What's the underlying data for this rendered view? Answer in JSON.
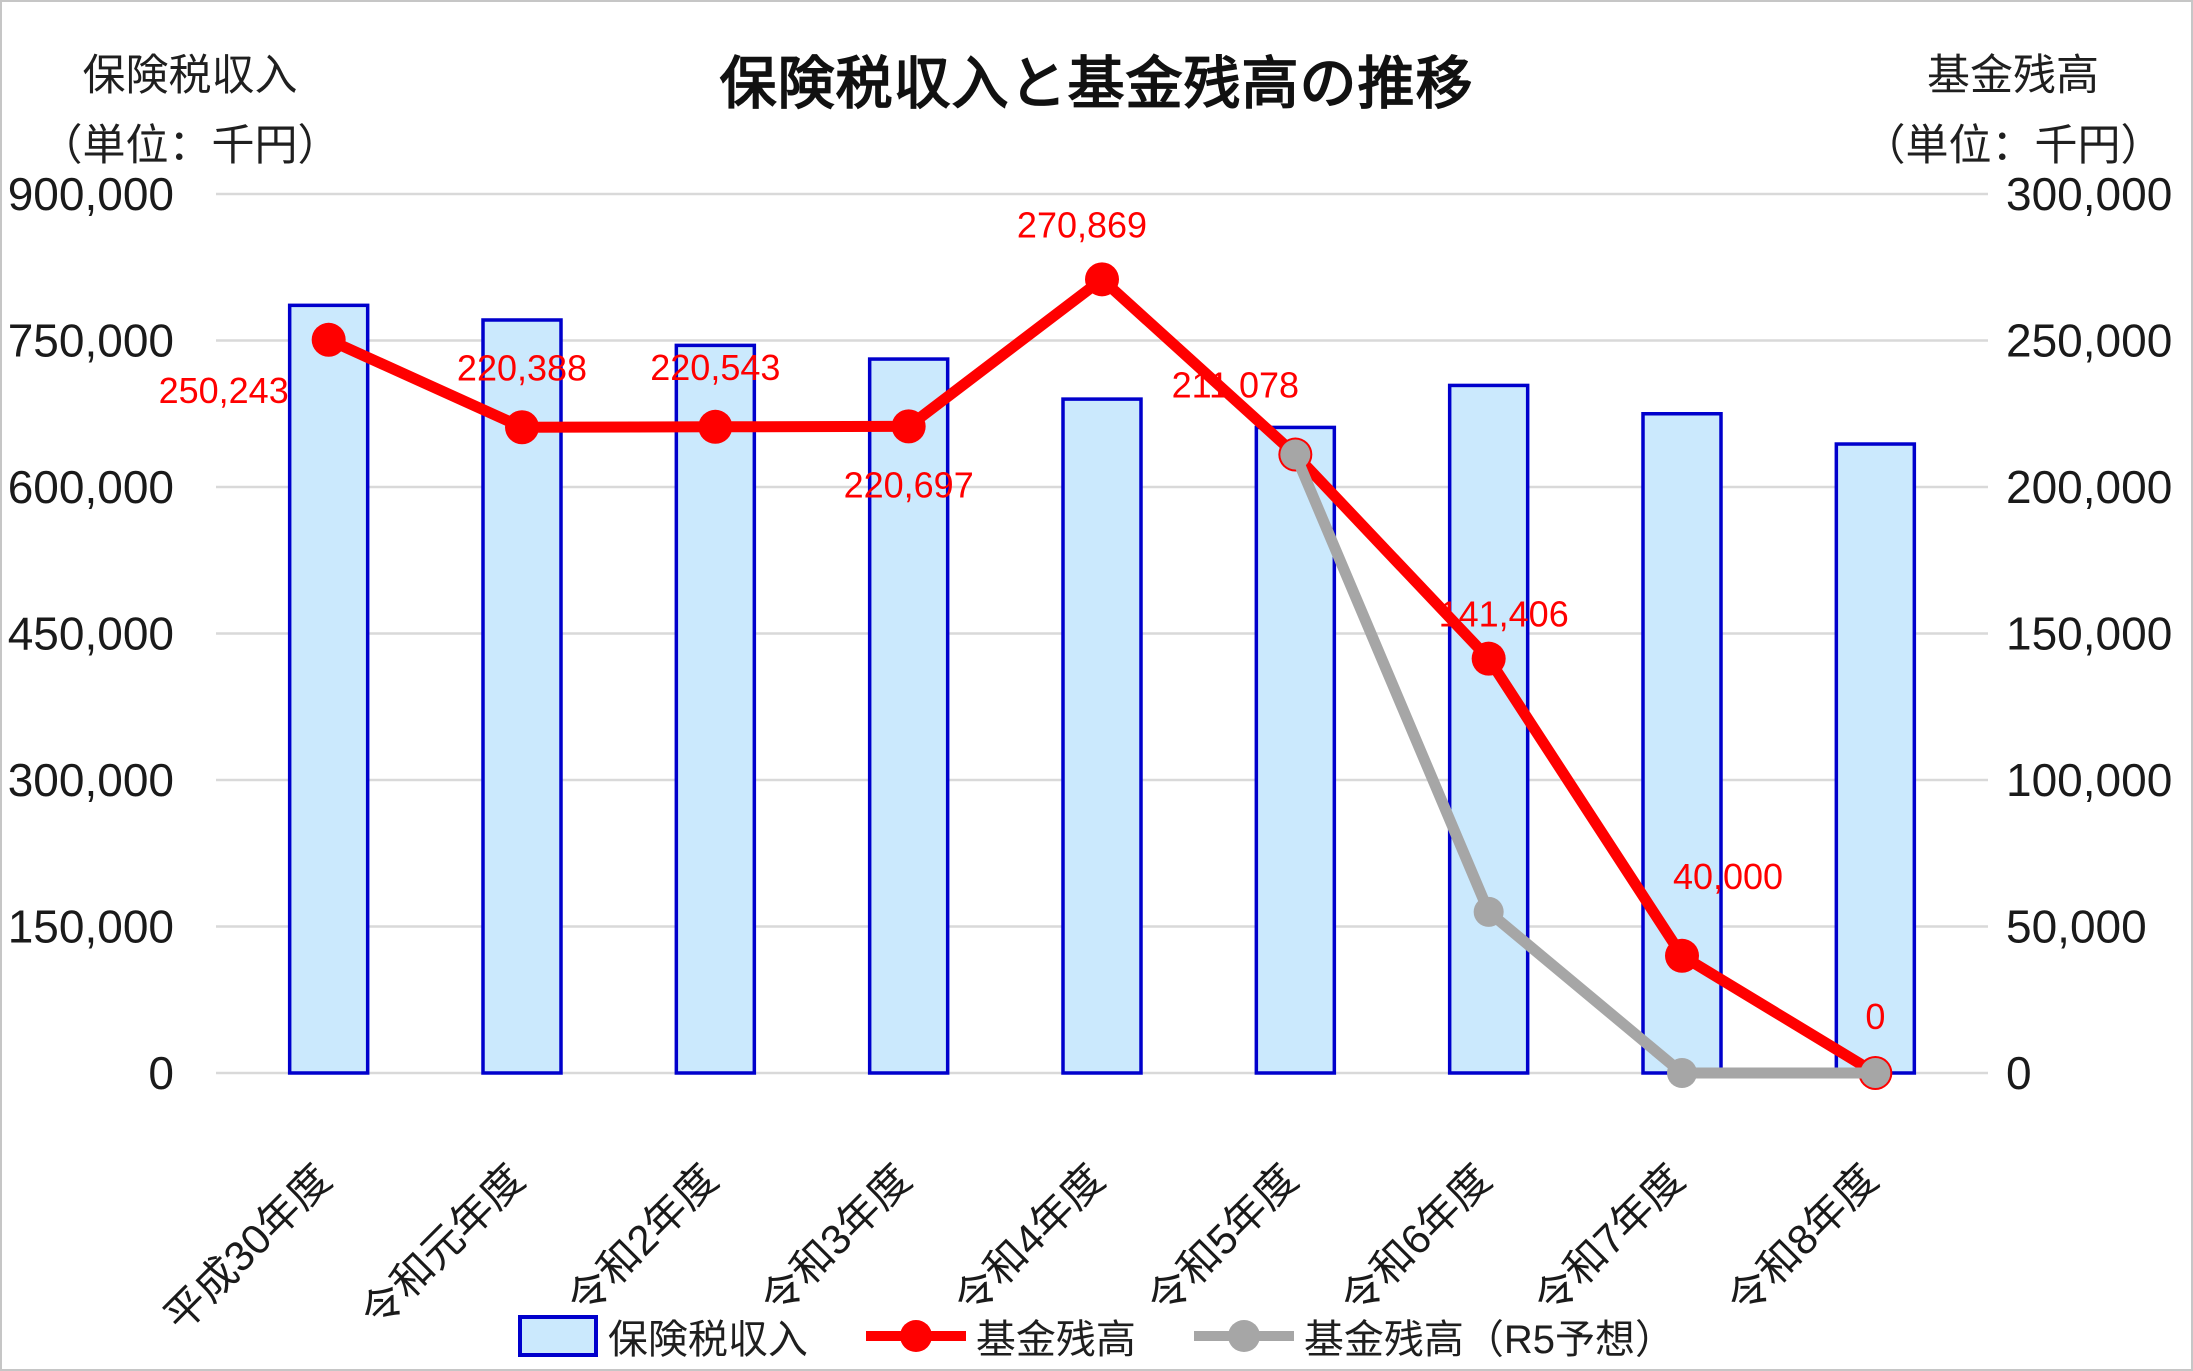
{
  "title": "保険税収入と基金残高の推移",
  "axis_headers": {
    "left_line1": "保険税収入",
    "left_line2": "（単位：千円）",
    "right_line1": "基金残高",
    "right_line2": "（単位：千円）"
  },
  "legend": {
    "items": [
      {
        "label": "保険税収入",
        "swatch": "bar",
        "fill": "#CBE9FD",
        "border": "#0000CC"
      },
      {
        "label": "基金残高",
        "swatch": "line",
        "color": "#FF0000"
      },
      {
        "label": "基金残高（R5予想）",
        "swatch": "line",
        "color": "#A6A6A6"
      }
    ]
  },
  "colors": {
    "grid": "#D9D9D9",
    "axis_text": "#1a1a1a",
    "data_label": "#FF0000",
    "frame_border": "#c6c6c6",
    "background": "#ffffff"
  },
  "chart_data": {
    "type": "combo-bar-line",
    "grid": true,
    "legend_position": "bottom",
    "categories": [
      "平成30年度",
      "令和元年度",
      "令和2年度",
      "令和3年度",
      "令和4年度",
      "令和5年度",
      "令和6年度",
      "令和7年度",
      "令和8年度"
    ],
    "left_axis": {
      "title": "保険税収入（単位：千円）",
      "min": 0,
      "max": 900000,
      "step": 150000,
      "tick_labels": [
        "0",
        "150,000",
        "300,000",
        "450,000",
        "600,000",
        "750,000",
        "900,000"
      ]
    },
    "right_axis": {
      "title": "基金残高（単位：千円）",
      "min": 0,
      "max": 300000,
      "step": 50000,
      "tick_labels": [
        "0",
        "50,000",
        "100,000",
        "150,000",
        "200,000",
        "250,000",
        "300,000"
      ]
    },
    "series": [
      {
        "name": "保険税収入",
        "chart_type": "bar",
        "axis": "left",
        "fill": "#CBE9FD",
        "stroke": "#0000CC",
        "values": [
          786000,
          771000,
          745000,
          731000,
          690000,
          661000,
          704000,
          675000,
          644000
        ]
      },
      {
        "name": "基金残高",
        "chart_type": "line",
        "axis": "right",
        "color": "#FF0000",
        "values": [
          250243,
          220388,
          220543,
          220697,
          270869,
          211078,
          141406,
          40000,
          0
        ],
        "data_labels": [
          "250,243",
          "220,388",
          "220,543",
          "220,697",
          "270,869",
          "211,078",
          "141,406",
          "40,000",
          "0"
        ]
      },
      {
        "name": "基金残高（R5予想）",
        "chart_type": "line",
        "axis": "right",
        "color": "#A6A6A6",
        "values": [
          null,
          null,
          null,
          null,
          null,
          211078,
          55000,
          0,
          0
        ]
      }
    ]
  }
}
